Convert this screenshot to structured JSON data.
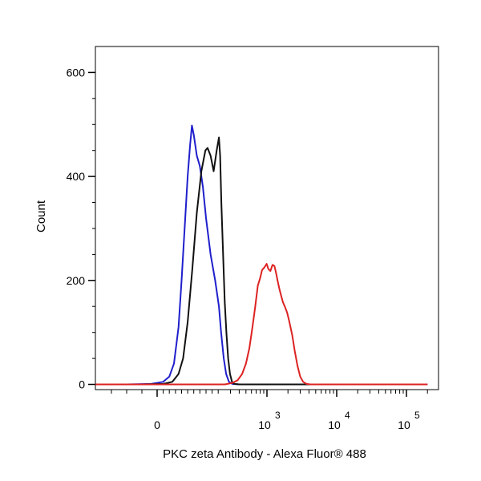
{
  "chart_data": {
    "type": "line",
    "title": "",
    "xlabel": "PKC  zeta Antibody - Alexa Fluor® 488",
    "ylabel": "Count",
    "x_scale": "biexponential",
    "xlim": [
      -300,
      200000
    ],
    "ylim": [
      -10,
      650
    ],
    "x_ticks": [
      {
        "value": 0,
        "base": "0",
        "exp": ""
      },
      {
        "value": 1000,
        "base": "10",
        "exp": "3"
      },
      {
        "value": 10000,
        "base": "10",
        "exp": "4"
      },
      {
        "value": 100000,
        "base": "10",
        "exp": "5"
      }
    ],
    "y_ticks": [
      0,
      200,
      400,
      600
    ],
    "grid": false,
    "legend": "none",
    "series": [
      {
        "color": "#1f1fcc",
        "points": [
          [
            -250,
            0
          ],
          [
            -100,
            0
          ],
          [
            -20,
            1
          ],
          [
            20,
            5
          ],
          [
            40,
            15
          ],
          [
            55,
            40
          ],
          [
            70,
            110
          ],
          [
            80,
            200
          ],
          [
            90,
            300
          ],
          [
            100,
            400
          ],
          [
            108,
            460
          ],
          [
            114,
            498
          ],
          [
            120,
            480
          ],
          [
            130,
            440
          ],
          [
            140,
            420
          ],
          [
            150,
            380
          ],
          [
            160,
            320
          ],
          [
            175,
            250
          ],
          [
            190,
            200
          ],
          [
            205,
            150
          ],
          [
            220,
            100
          ],
          [
            240,
            50
          ],
          [
            260,
            20
          ],
          [
            285,
            5
          ],
          [
            320,
            1
          ],
          [
            400,
            0
          ],
          [
            2000,
            0
          ],
          [
            200000,
            0
          ]
        ]
      },
      {
        "color": "#111111",
        "points": [
          [
            -250,
            0
          ],
          [
            -50,
            0
          ],
          [
            20,
            1
          ],
          [
            50,
            5
          ],
          [
            70,
            20
          ],
          [
            85,
            50
          ],
          [
            100,
            120
          ],
          [
            115,
            220
          ],
          [
            130,
            330
          ],
          [
            145,
            410
          ],
          [
            158,
            450
          ],
          [
            165,
            455
          ],
          [
            175,
            440
          ],
          [
            185,
            410
          ],
          [
            195,
            450
          ],
          [
            205,
            475
          ],
          [
            213,
            440
          ],
          [
            222,
            350
          ],
          [
            235,
            250
          ],
          [
            248,
            160
          ],
          [
            262,
            100
          ],
          [
            278,
            50
          ],
          [
            295,
            20
          ],
          [
            315,
            5
          ],
          [
            340,
            1
          ],
          [
            400,
            0
          ],
          [
            200000,
            0
          ]
        ]
      },
      {
        "color": "#dd2222",
        "points": [
          [
            -250,
            0
          ],
          [
            100,
            0
          ],
          [
            250,
            0
          ],
          [
            320,
            3
          ],
          [
            380,
            8
          ],
          [
            440,
            20
          ],
          [
            500,
            40
          ],
          [
            560,
            70
          ],
          [
            620,
            110
          ],
          [
            680,
            150
          ],
          [
            740,
            190
          ],
          [
            800,
            205
          ],
          [
            850,
            220
          ],
          [
            920,
            225
          ],
          [
            990,
            232
          ],
          [
            1050,
            222
          ],
          [
            1120,
            218
          ],
          [
            1200,
            230
          ],
          [
            1280,
            228
          ],
          [
            1350,
            215
          ],
          [
            1420,
            200
          ],
          [
            1500,
            185
          ],
          [
            1600,
            170
          ],
          [
            1700,
            158
          ],
          [
            1800,
            150
          ],
          [
            1950,
            138
          ],
          [
            2100,
            120
          ],
          [
            2300,
            95
          ],
          [
            2500,
            65
          ],
          [
            2750,
            35
          ],
          [
            3000,
            15
          ],
          [
            3300,
            5
          ],
          [
            3700,
            1
          ],
          [
            4200,
            0
          ],
          [
            200000,
            0
          ]
        ]
      }
    ]
  }
}
